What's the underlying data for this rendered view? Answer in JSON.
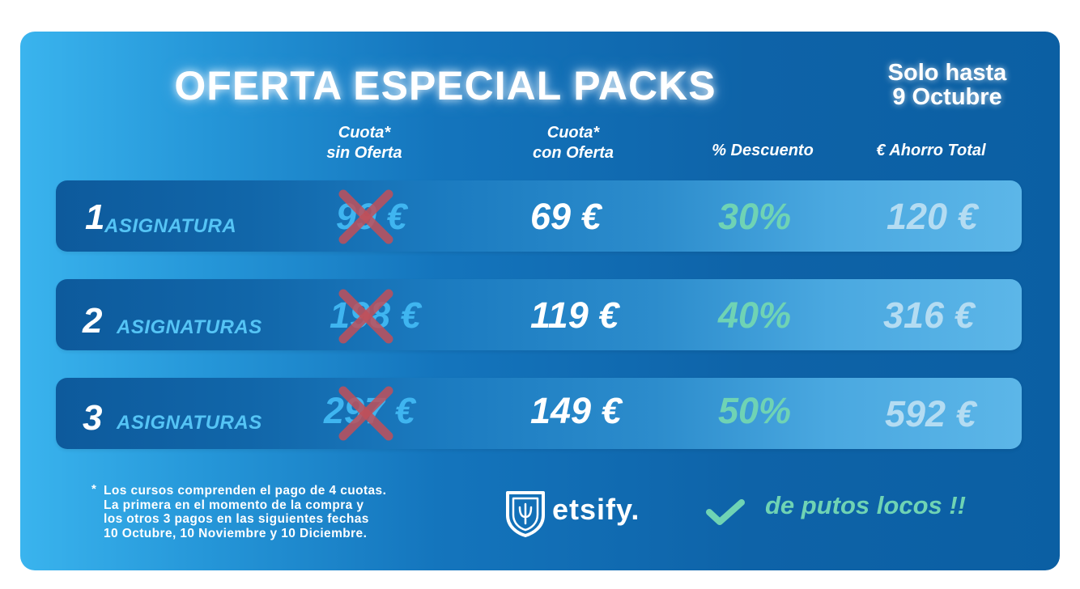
{
  "title": "OFERTA ESPECIAL PACKS",
  "deadline": {
    "line1": "Solo hasta",
    "line2": "9 Octubre"
  },
  "columns": {
    "without_offer": {
      "line1": "Cuota*",
      "line2": "sin Oferta"
    },
    "with_offer": {
      "line1": "Cuota*",
      "line2": "con Oferta"
    },
    "discount": "% Descuento",
    "total_savings": "€ Ahorro Total"
  },
  "rows": [
    {
      "number": "1",
      "label": "ASIGNATURA",
      "old_price": "99 €",
      "new_price": "69 €",
      "discount": "30%",
      "savings": "120 €"
    },
    {
      "number": "2",
      "label": "ASIGNATURAS",
      "old_price": "198 €",
      "new_price": "119 €",
      "discount": "40%",
      "savings": "316 €"
    },
    {
      "number": "3",
      "label": "ASIGNATURAS",
      "old_price": "297 €",
      "new_price": "149 €",
      "discount": "50%",
      "savings": "592 €"
    }
  ],
  "footnote": {
    "star": "*",
    "lines": [
      "Los cursos comprenden el pago de 4 cuotas.",
      "La primera en el momento de la compra y",
      "los otros 3 pagos en las siguientes fechas",
      "10 Octubre, 10 Noviembre y 10 Diciembre."
    ]
  },
  "brand": {
    "name": "etsify.",
    "logo_icon": "shield-icon"
  },
  "slogan": {
    "icon": "checkmark-icon",
    "text": "de putos locos !!"
  },
  "colors": {
    "background_left": "#3ab4ee",
    "background_right": "#0b5fa3",
    "old_price": "#3fb5f0",
    "discount": "#6fd3b4",
    "strike": "#c0505a",
    "savings": "#b4dcf2"
  }
}
